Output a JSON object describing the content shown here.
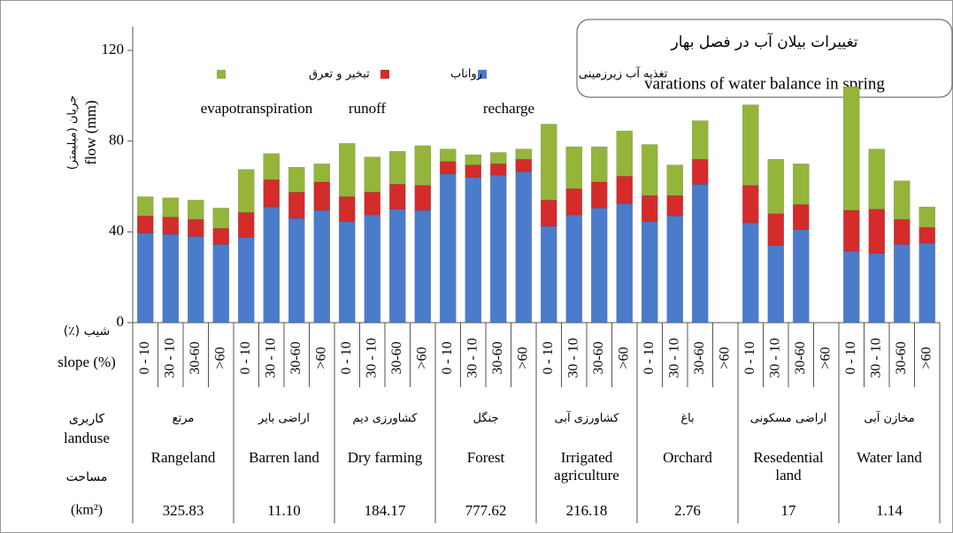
{
  "chart_data": {
    "type": "bar",
    "stacked": true,
    "title_fa": "تغییرات بیلان آب در فصل بهار",
    "title_en": "varations of water balance in spring",
    "ylabel_fa": "جریان (میلیمتر)",
    "ylabel_en": "flow (mm)",
    "ylim": [
      0,
      120
    ],
    "yticks": [
      0,
      40,
      80,
      120
    ],
    "slope_label_fa": "شیب (٪)",
    "slope_label_en": "slope (%)",
    "landuse_label_fa": "کاربری",
    "landuse_label_en": "landuse",
    "area_label_fa": "مساحت",
    "area_label_en": "(km²)",
    "categories": [
      "0 - 10",
      "30 - 10",
      "30-60",
      ">60",
      "0 - 10",
      "30 - 10",
      "30-60",
      ">60",
      "0 - 10",
      "30 - 10",
      "30-60",
      ">60",
      "0 - 10",
      "30 - 10",
      "30-60",
      ">60",
      "0 - 10",
      "30 - 10",
      "30-60",
      ">60",
      "0 - 10",
      "30 - 10",
      "30-60",
      ">60",
      "0 - 10",
      "30 - 10",
      "30-60",
      ">60",
      "0 - 10",
      "30 - 10",
      "30-60",
      ">60"
    ],
    "groups": [
      {
        "name_fa": "مرتع",
        "name_en": "Rangeland",
        "area": "325.83"
      },
      {
        "name_fa": "اراضی بایر",
        "name_en": "Barren land",
        "area": "11.10"
      },
      {
        "name_fa": "کشاورزی دیم",
        "name_en": "Dry farming",
        "area": "184.17"
      },
      {
        "name_fa": "جنگل",
        "name_en": "Forest",
        "area": "777.62"
      },
      {
        "name_fa": "کشاورزی آبی",
        "name_en": "Irrigated agriculture",
        "area": "216.18"
      },
      {
        "name_fa": "باغ",
        "name_en": "Orchard",
        "area": "2.76"
      },
      {
        "name_fa": "اراضی مسکونی",
        "name_en": "Resedential land",
        "area": "17"
      },
      {
        "name_fa": "مخازن آبی",
        "name_en": "Water land",
        "area": "1.14"
      }
    ],
    "series": [
      {
        "name": "تغذیه آب زیرزمینی",
        "name_en": "recharge",
        "color": "#4a7ccb",
        "values": [
          39.5,
          39,
          38,
          34.5,
          37.5,
          51,
          46,
          49.5,
          44.5,
          47.5,
          50,
          49.5,
          65.5,
          64,
          65,
          66.5,
          42.5,
          47.5,
          50.5,
          52.5,
          44.5,
          47,
          61,
          null,
          44,
          34,
          41,
          null,
          31.5,
          30.5,
          34.5,
          35
        ]
      },
      {
        "name": "رواناب",
        "name_en": "runoff",
        "color": "#d42b2b",
        "values": [
          7.5,
          7.5,
          7.5,
          7,
          11,
          12,
          11.5,
          12.5,
          11,
          10,
          11,
          11,
          5.5,
          5.5,
          5,
          5.5,
          11.5,
          11.5,
          11.5,
          12,
          11.5,
          9,
          11,
          null,
          16.5,
          14,
          11,
          null,
          18,
          19.5,
          11,
          7
        ]
      },
      {
        "name": "تبخیر و تعرق",
        "name_en": "evapotranspiration",
        "color": "#94b53a",
        "values": [
          8.5,
          8.5,
          8.5,
          9,
          19,
          11.5,
          11,
          8,
          23.5,
          15.5,
          14.5,
          17.5,
          5.5,
          4.5,
          5,
          4.5,
          33.5,
          18.5,
          15.5,
          20,
          22.5,
          13.5,
          17,
          null,
          35.5,
          24,
          18,
          null,
          54.5,
          26.5,
          17,
          9
        ]
      }
    ]
  }
}
